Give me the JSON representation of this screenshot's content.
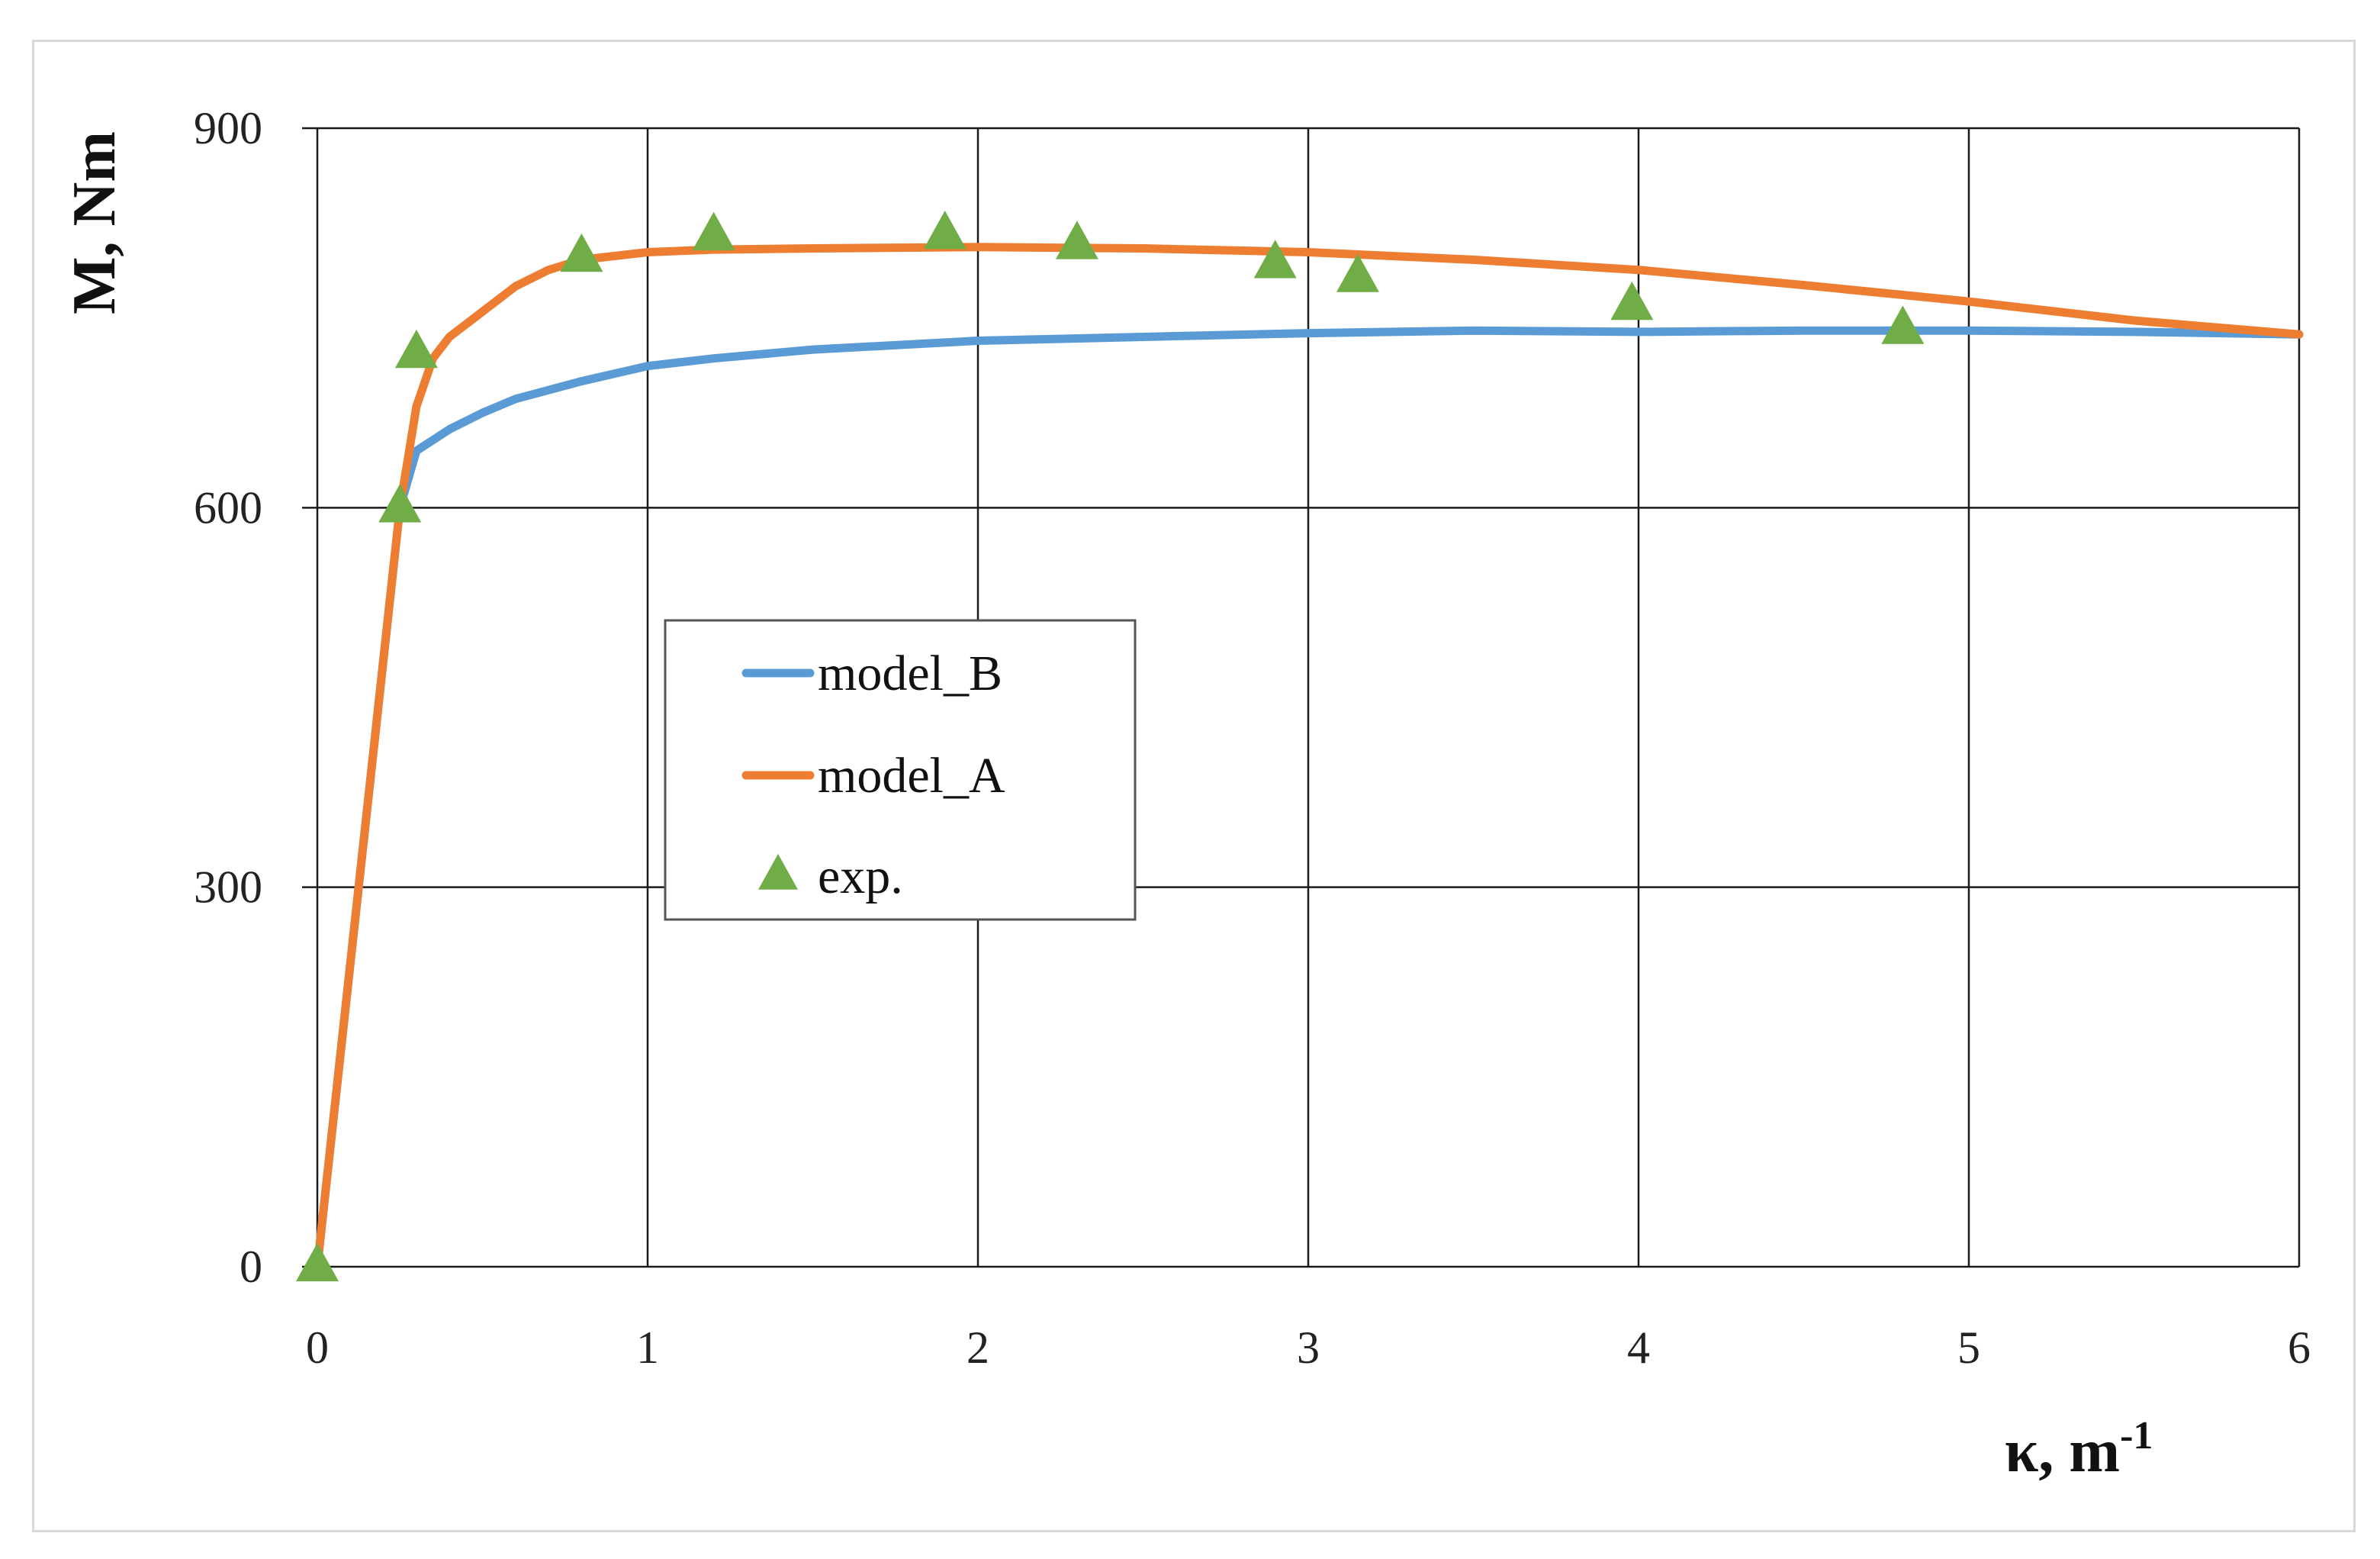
{
  "chart_data": {
    "type": "line",
    "xlabel": "κ, m",
    "xlabel_superscript": "-1",
    "ylabel": "M, Nm",
    "xlim": [
      0,
      6
    ],
    "ylim": [
      0,
      900
    ],
    "x_ticks": [
      "0",
      "1",
      "2",
      "3",
      "4",
      "5",
      "6"
    ],
    "y_ticks": [
      "0",
      "300",
      "600",
      "900"
    ],
    "grid": true,
    "legend_position": "center-left",
    "series": [
      {
        "name": "model_B",
        "kind": "line",
        "color": "#5B9BD5",
        "x": [
          0,
          0.25,
          0.3,
          0.4,
          0.5,
          0.6,
          0.8,
          1.0,
          1.2,
          1.5,
          2.0,
          2.5,
          3.0,
          3.5,
          4.0,
          4.5,
          5.0,
          5.5,
          6.0
        ],
        "y": [
          0,
          600,
          645,
          662,
          675,
          686,
          700,
          712,
          718,
          725,
          732,
          735,
          738,
          740,
          739,
          740,
          740,
          739,
          737
        ]
      },
      {
        "name": "model_A",
        "kind": "line",
        "color": "#ED7D31",
        "x": [
          0,
          0.25,
          0.3,
          0.35,
          0.4,
          0.5,
          0.6,
          0.7,
          0.8,
          1.0,
          1.2,
          1.5,
          2.0,
          2.5,
          3.0,
          3.5,
          4.0,
          4.5,
          5.0,
          5.5,
          6.0
        ],
        "y": [
          0,
          600,
          680,
          718,
          735,
          755,
          775,
          788,
          796,
          802,
          804,
          805,
          806,
          805,
          802,
          796,
          788,
          776,
          763,
          748,
          737
        ]
      },
      {
        "name": "exp.",
        "kind": "marker",
        "marker": "triangle",
        "color": "#70AD47",
        "x": [
          0,
          0.25,
          0.3,
          0.8,
          1.2,
          1.9,
          2.3,
          2.9,
          3.15,
          3.98,
          4.8
        ],
        "y": [
          0,
          600,
          722,
          798,
          815,
          816,
          808,
          793,
          782,
          760,
          741
        ]
      }
    ]
  }
}
